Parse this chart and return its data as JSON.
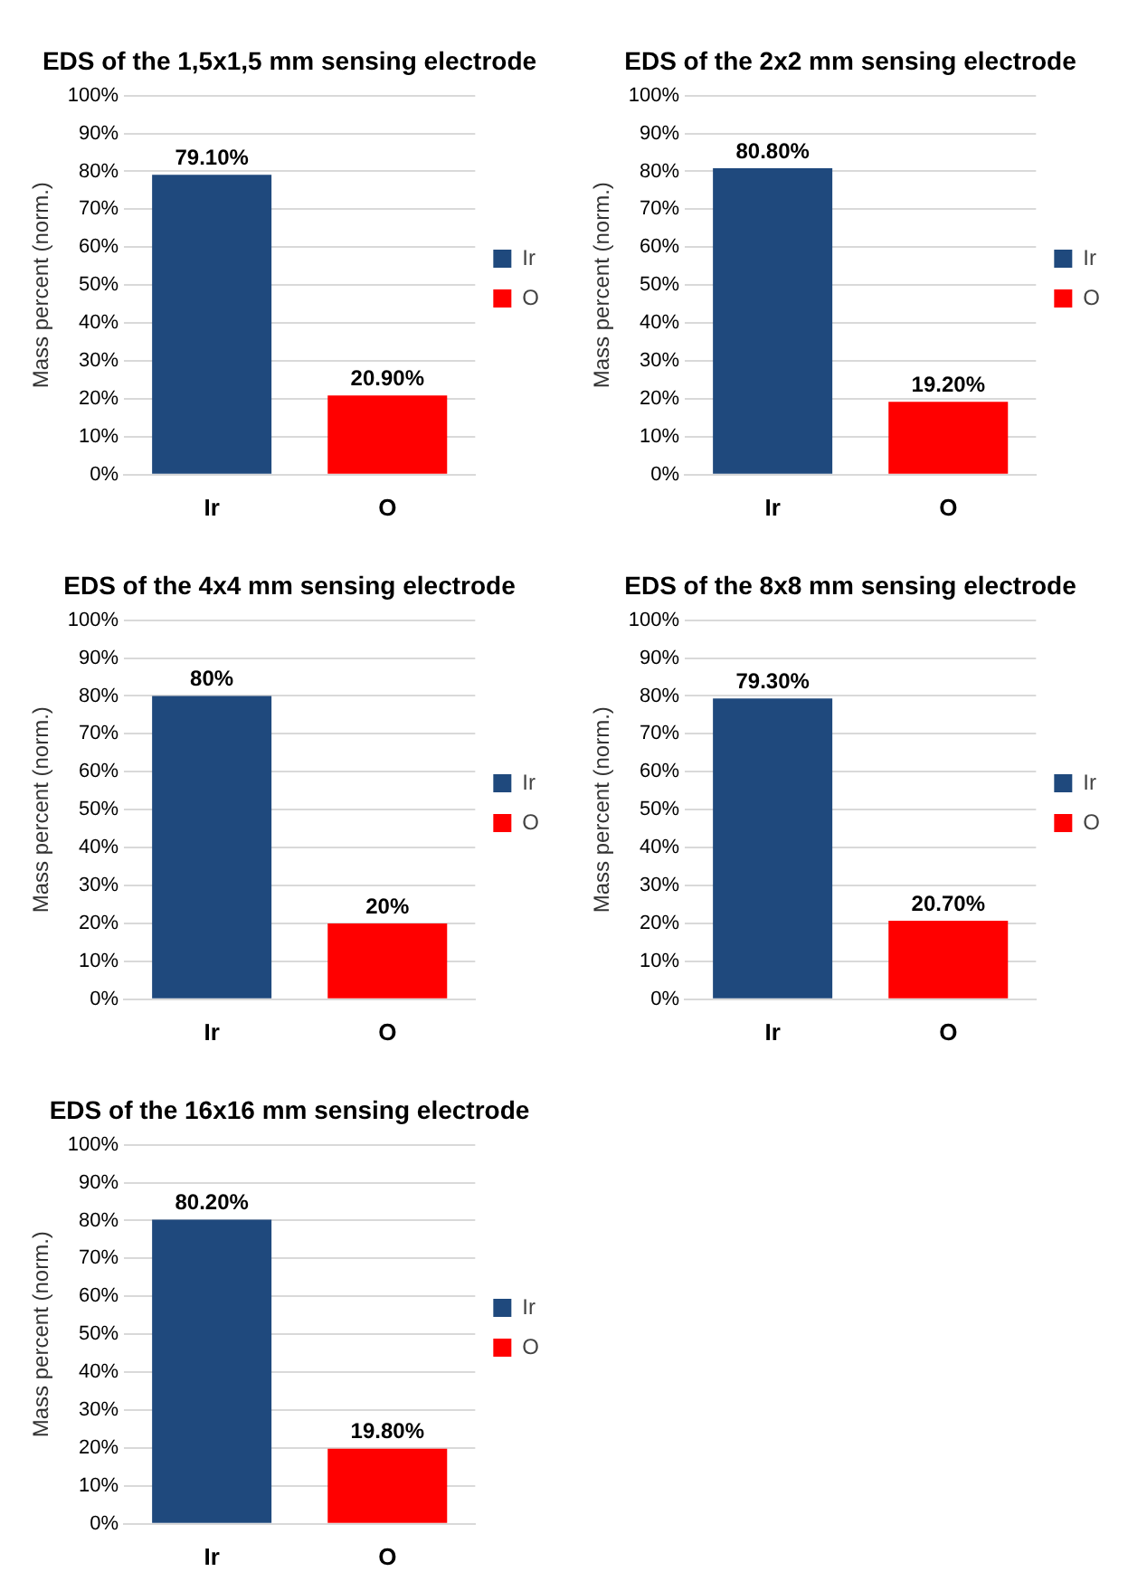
{
  "chart_data": [
    {
      "type": "bar",
      "title": "EDS of the 1,5x1,5 mm sensing electrode",
      "ylabel": "Mass percent (norm.)",
      "categories": [
        "Ir",
        "O"
      ],
      "series": [
        {
          "name": "Ir",
          "color": "#1f497d",
          "values": [
            79.1,
            null
          ],
          "value_labels": [
            "79.10%",
            null
          ]
        },
        {
          "name": "O",
          "color": "#ff0000",
          "values": [
            null,
            20.9
          ],
          "value_labels": [
            null,
            "20.90%"
          ]
        }
      ],
      "ylim": [
        0,
        100
      ],
      "yticks": [
        {
          "value": 0,
          "label": "0%"
        },
        {
          "value": 10,
          "label": "10%"
        },
        {
          "value": 20,
          "label": "20%"
        },
        {
          "value": 30,
          "label": "30%"
        },
        {
          "value": 40,
          "label": "40%"
        },
        {
          "value": 50,
          "label": "50%"
        },
        {
          "value": 60,
          "label": "60%"
        },
        {
          "value": 70,
          "label": "70%"
        },
        {
          "value": 80,
          "label": "80%"
        },
        {
          "value": 90,
          "label": "90%"
        },
        {
          "value": 100,
          "label": "100%"
        }
      ],
      "grid": "y",
      "legend": "right"
    },
    {
      "type": "bar",
      "title": "EDS of the 2x2 mm sensing electrode",
      "ylabel": "Mass percent (norm.)",
      "categories": [
        "Ir",
        "O"
      ],
      "series": [
        {
          "name": "Ir",
          "color": "#1f497d",
          "values": [
            80.8,
            null
          ],
          "value_labels": [
            "80.80%",
            null
          ]
        },
        {
          "name": "O",
          "color": "#ff0000",
          "values": [
            null,
            19.2
          ],
          "value_labels": [
            null,
            "19.20%"
          ]
        }
      ],
      "ylim": [
        0,
        100
      ],
      "yticks": [
        {
          "value": 0,
          "label": "0%"
        },
        {
          "value": 10,
          "label": "10%"
        },
        {
          "value": 20,
          "label": "20%"
        },
        {
          "value": 30,
          "label": "30%"
        },
        {
          "value": 40,
          "label": "40%"
        },
        {
          "value": 50,
          "label": "50%"
        },
        {
          "value": 60,
          "label": "60%"
        },
        {
          "value": 70,
          "label": "70%"
        },
        {
          "value": 80,
          "label": "80%"
        },
        {
          "value": 90,
          "label": "90%"
        },
        {
          "value": 100,
          "label": "100%"
        }
      ],
      "grid": "y",
      "legend": "right"
    },
    {
      "type": "bar",
      "title": "EDS of the 4x4 mm sensing electrode",
      "ylabel": "Mass percent (norm.)",
      "categories": [
        "Ir",
        "O"
      ],
      "series": [
        {
          "name": "Ir",
          "color": "#1f497d",
          "values": [
            80,
            null
          ],
          "value_labels": [
            "80%",
            null
          ]
        },
        {
          "name": "O",
          "color": "#ff0000",
          "values": [
            null,
            20
          ],
          "value_labels": [
            null,
            "20%"
          ]
        }
      ],
      "ylim": [
        0,
        100
      ],
      "yticks": [
        {
          "value": 0,
          "label": "0%"
        },
        {
          "value": 10,
          "label": "10%"
        },
        {
          "value": 20,
          "label": "20%"
        },
        {
          "value": 30,
          "label": "30%"
        },
        {
          "value": 40,
          "label": "40%"
        },
        {
          "value": 50,
          "label": "50%"
        },
        {
          "value": 60,
          "label": "60%"
        },
        {
          "value": 70,
          "label": "70%"
        },
        {
          "value": 80,
          "label": "80%"
        },
        {
          "value": 90,
          "label": "90%"
        },
        {
          "value": 100,
          "label": "100%"
        }
      ],
      "grid": "y",
      "legend": "right"
    },
    {
      "type": "bar",
      "title": "EDS of the 8x8 mm sensing electrode",
      "ylabel": "Mass percent (norm.)",
      "categories": [
        "Ir",
        "O"
      ],
      "series": [
        {
          "name": "Ir",
          "color": "#1f497d",
          "values": [
            79.3,
            null
          ],
          "value_labels": [
            "79.30%",
            null
          ]
        },
        {
          "name": "O",
          "color": "#ff0000",
          "values": [
            null,
            20.7
          ],
          "value_labels": [
            null,
            "20.70%"
          ]
        }
      ],
      "ylim": [
        0,
        100
      ],
      "yticks": [
        {
          "value": 0,
          "label": "0%"
        },
        {
          "value": 10,
          "label": "10%"
        },
        {
          "value": 20,
          "label": "20%"
        },
        {
          "value": 30,
          "label": "30%"
        },
        {
          "value": 40,
          "label": "40%"
        },
        {
          "value": 50,
          "label": "50%"
        },
        {
          "value": 60,
          "label": "60%"
        },
        {
          "value": 70,
          "label": "70%"
        },
        {
          "value": 80,
          "label": "80%"
        },
        {
          "value": 90,
          "label": "90%"
        },
        {
          "value": 100,
          "label": "100%"
        }
      ],
      "grid": "y",
      "legend": "right"
    },
    {
      "type": "bar",
      "title": "EDS of the 16x16 mm sensing electrode",
      "ylabel": "Mass percent (norm.)",
      "categories": [
        "Ir",
        "O"
      ],
      "series": [
        {
          "name": "Ir",
          "color": "#1f497d",
          "values": [
            80.2,
            null
          ],
          "value_labels": [
            "80.20%",
            null
          ]
        },
        {
          "name": "O",
          "color": "#ff0000",
          "values": [
            null,
            19.8
          ],
          "value_labels": [
            null,
            "19.80%"
          ]
        }
      ],
      "ylim": [
        0,
        100
      ],
      "yticks": [
        {
          "value": 0,
          "label": "0%"
        },
        {
          "value": 10,
          "label": "10%"
        },
        {
          "value": 20,
          "label": "20%"
        },
        {
          "value": 30,
          "label": "30%"
        },
        {
          "value": 40,
          "label": "40%"
        },
        {
          "value": 50,
          "label": "50%"
        },
        {
          "value": 60,
          "label": "60%"
        },
        {
          "value": 70,
          "label": "70%"
        },
        {
          "value": 80,
          "label": "80%"
        },
        {
          "value": 90,
          "label": "90%"
        },
        {
          "value": 100,
          "label": "100%"
        }
      ],
      "grid": "y",
      "legend": "right"
    }
  ]
}
